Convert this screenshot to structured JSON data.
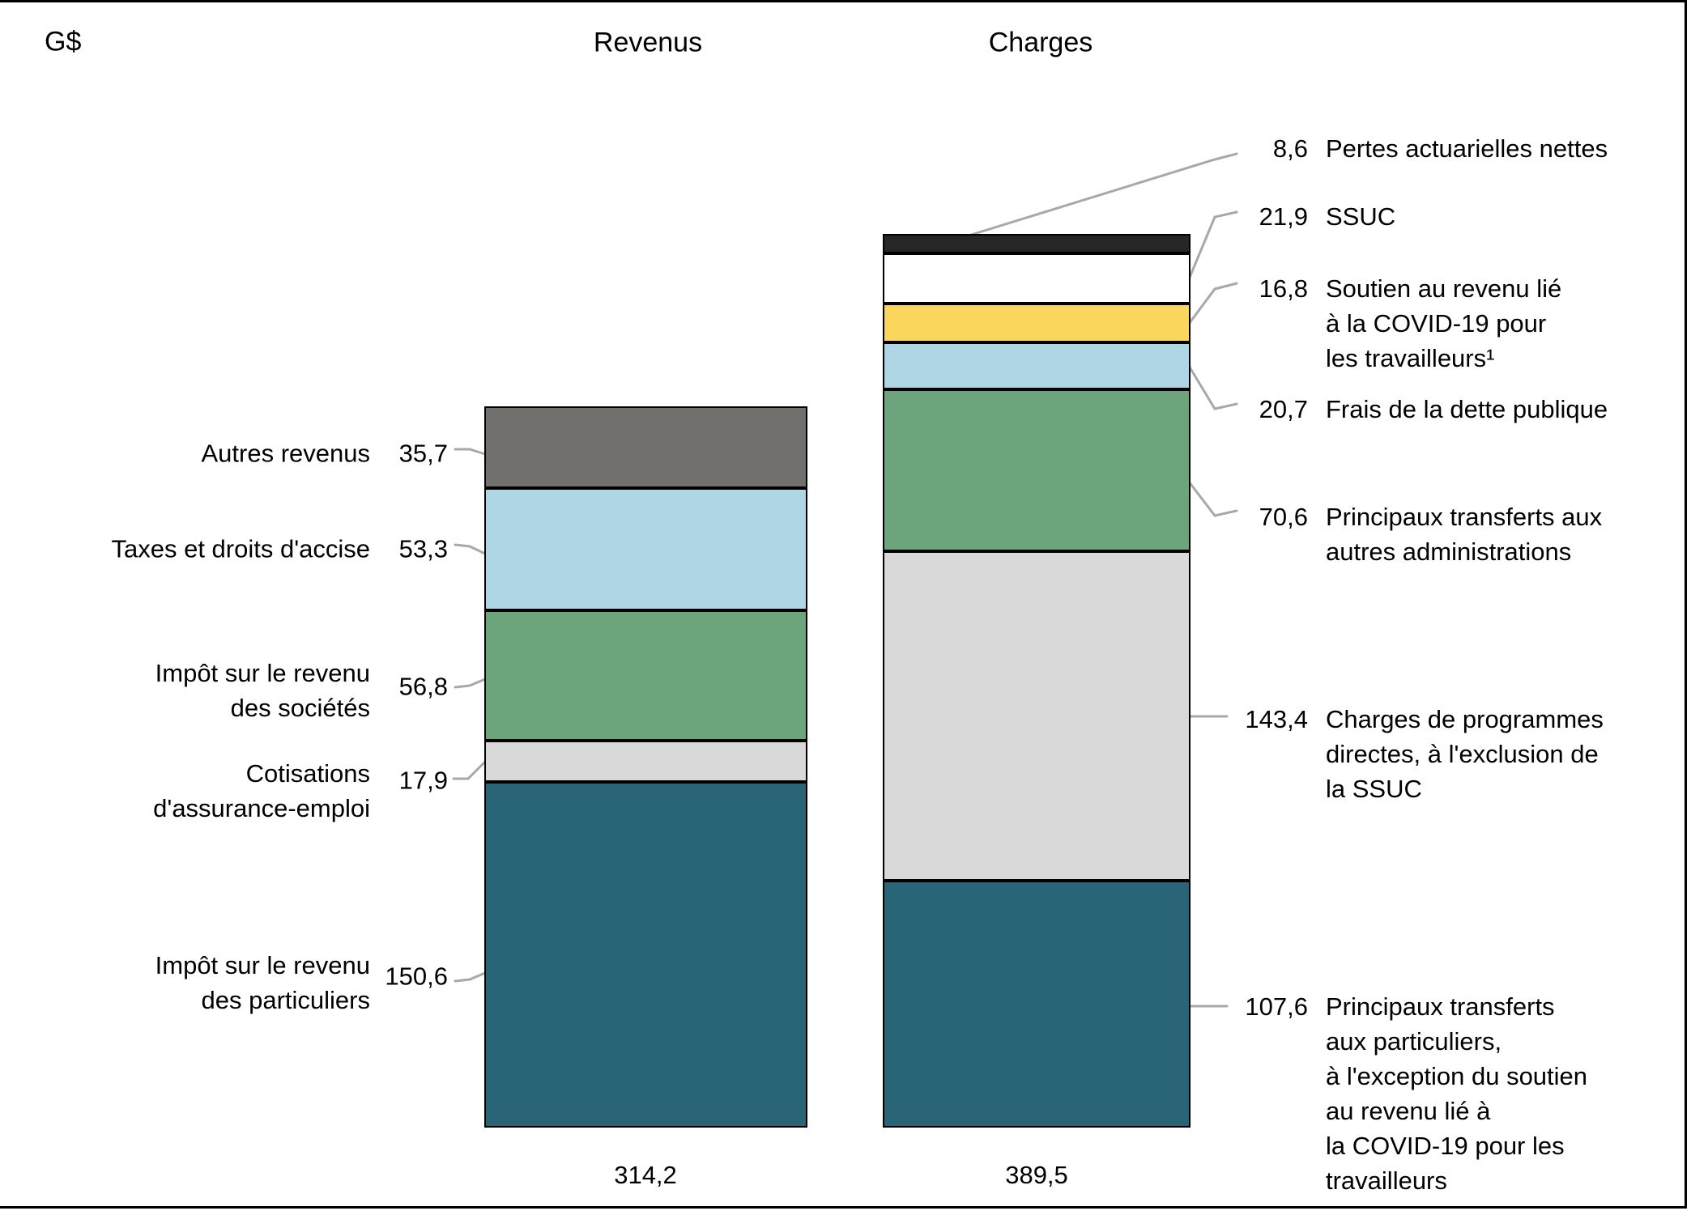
{
  "figure": {
    "unit_label": "G$",
    "column_titles": [
      "Revenus",
      "Charges"
    ],
    "column_totals": [
      "314,2",
      "389,5"
    ]
  },
  "chart_data": {
    "type": "bar",
    "stacked": true,
    "orientation": "vertical",
    "unit": "G$",
    "grid": false,
    "categories": [
      "Revenus",
      "Charges"
    ],
    "totals": [
      314.2,
      389.5
    ],
    "bars": [
      {
        "category": "Revenus",
        "total": 314.2,
        "total_label": "314,2",
        "segments": [
          {
            "label": "Impôt sur le revenu des particuliers",
            "value": 150.6,
            "value_label": "150,6",
            "color": "#2A6577"
          },
          {
            "label": "Cotisations d'assurance-emploi",
            "value": 17.9,
            "value_label": "17,9",
            "color": "#D9D9D9"
          },
          {
            "label": "Impôt sur le revenu des sociétés",
            "value": 56.8,
            "value_label": "56,8",
            "color": "#6CA57C"
          },
          {
            "label": "Taxes et droits d'accise",
            "value": 53.3,
            "value_label": "53,3",
            "color": "#AED6E4"
          },
          {
            "label": "Autres revenus",
            "value": 35.7,
            "value_label": "35,7",
            "color": "#726F6F"
          }
        ]
      },
      {
        "category": "Charges",
        "total": 389.5,
        "total_label": "389,5",
        "segments": [
          {
            "label": "Principaux transferts aux particuliers, à l'exception du soutien au revenu lié à la COVID-19 pour les travailleurs",
            "value": 107.6,
            "value_label": "107,6",
            "color": "#2A6577"
          },
          {
            "label": "Charges de programmes directes, à l'exclusion de la SSUC",
            "value": 143.4,
            "value_label": "143,4",
            "color": "#D9D9D9"
          },
          {
            "label": "Principaux transferts aux autres administrations",
            "value": 70.6,
            "value_label": "70,6",
            "color": "#6CA57C"
          },
          {
            "label": "Frais de la dette publique",
            "value": 20.7,
            "value_label": "20,7",
            "color": "#AED6E4"
          },
          {
            "label": "Soutien au revenu lié à la COVID-19 pour les travailleurs",
            "value": 16.8,
            "value_label": "16,8",
            "color": "#FBD65C",
            "footnote": "1"
          },
          {
            "label": "SSUC",
            "value": 21.9,
            "value_label": "21,9",
            "color": "#FFFFFF"
          },
          {
            "label": "Pertes actuarielles nettes",
            "value": 8.6,
            "value_label": "8,6",
            "color": "#262626"
          }
        ]
      }
    ],
    "leader_line_color": "#A8A8A8",
    "text_color": "#000000"
  },
  "annotations": {
    "left": [
      {
        "value_label": "35,7",
        "lines": [
          "Autres revenus"
        ]
      },
      {
        "value_label": "53,3",
        "lines": [
          "Taxes et droits d'accise"
        ]
      },
      {
        "value_label": "56,8",
        "lines": [
          "Impôt sur le revenu",
          "des sociétés"
        ]
      },
      {
        "value_label": "17,9",
        "lines": [
          "Cotisations",
          "d'assurance-emploi"
        ]
      },
      {
        "value_label": "150,6",
        "lines": [
          "Impôt sur le revenu",
          "des particuliers"
        ]
      }
    ],
    "right": [
      {
        "value_label": "8,6",
        "lines": [
          "Pertes actuarielles nettes"
        ]
      },
      {
        "value_label": "21,9",
        "lines": [
          "SSUC"
        ]
      },
      {
        "value_label": "16,8",
        "lines": [
          "Soutien au revenu lié",
          "à la COVID-19 pour",
          "les travailleurs¹"
        ]
      },
      {
        "value_label": "20,7",
        "lines": [
          "Frais de la dette publique"
        ]
      },
      {
        "value_label": "70,6",
        "lines": [
          "Principaux transferts aux",
          "autres administrations"
        ]
      },
      {
        "value_label": "143,4",
        "lines": [
          "Charges de programmes",
          "directes, à l'exclusion de",
          "la SSUC"
        ]
      },
      {
        "value_label": "107,6",
        "lines": [
          "Principaux transferts",
          "aux particuliers,",
          "à l'exception du soutien",
          "au revenu lié à",
          "la COVID-19 pour les",
          "travailleurs"
        ]
      }
    ]
  }
}
